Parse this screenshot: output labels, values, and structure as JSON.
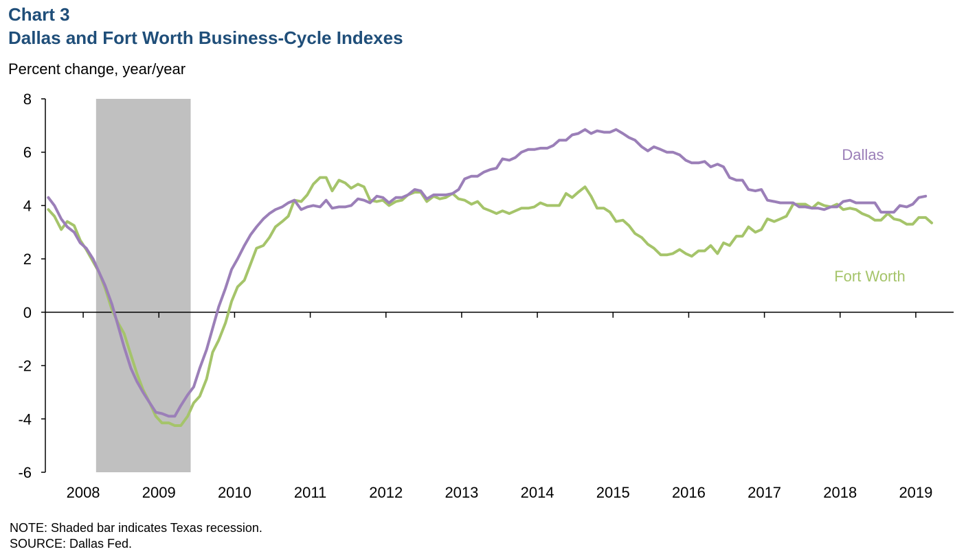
{
  "header": {
    "chart_number": "Chart 3",
    "title": "Dallas and Fort Worth Business-Cycle Indexes",
    "y_unit": "Percent change, year/year"
  },
  "footer": {
    "note": "NOTE: Shaded bar indicates Texas recession.",
    "source": "SOURCE: Dallas Fed."
  },
  "colors": {
    "dallas": "#9b7fb8",
    "fort_worth": "#a5c46a",
    "recession": "#c0c0c0"
  },
  "chart_data": {
    "type": "line",
    "title": "Dallas and Fort Worth Business-Cycle Indexes",
    "ylabel": "Percent change, year/year",
    "ylim": [
      -6,
      8
    ],
    "yticks": [
      8,
      6,
      4,
      2,
      0,
      -2,
      -4,
      -6
    ],
    "xlim": [
      2007.5,
      2019.5
    ],
    "xticks": [
      "2008",
      "2009",
      "2010",
      "2011",
      "2012",
      "2013",
      "2014",
      "2015",
      "2016",
      "2017",
      "2018",
      "2019"
    ],
    "shaded_periods": [
      {
        "label": "Texas recession",
        "start": 2008.17,
        "end": 2009.42
      }
    ],
    "legend": "inline labels",
    "series": [
      {
        "name": "Dallas",
        "label_text": "Dallas",
        "points": [
          [
            2007.54,
            4.3
          ],
          [
            2007.62,
            4.0
          ],
          [
            2007.71,
            3.5
          ],
          [
            2007.79,
            3.2
          ],
          [
            2007.88,
            3.0
          ],
          [
            2007.96,
            2.6
          ],
          [
            2008.04,
            2.4
          ],
          [
            2008.13,
            2.0
          ],
          [
            2008.21,
            1.5
          ],
          [
            2008.29,
            1.0
          ],
          [
            2008.38,
            0.3
          ],
          [
            2008.46,
            -0.5
          ],
          [
            2008.54,
            -1.3
          ],
          [
            2008.63,
            -2.1
          ],
          [
            2008.71,
            -2.6
          ],
          [
            2008.79,
            -3.0
          ],
          [
            2008.88,
            -3.4
          ],
          [
            2008.96,
            -3.75
          ],
          [
            2009.04,
            -3.8
          ],
          [
            2009.13,
            -3.9
          ],
          [
            2009.21,
            -3.9
          ],
          [
            2009.29,
            -3.5
          ],
          [
            2009.38,
            -3.1
          ],
          [
            2009.46,
            -2.8
          ],
          [
            2009.54,
            -2.1
          ],
          [
            2009.63,
            -1.4
          ],
          [
            2009.71,
            -0.6
          ],
          [
            2009.79,
            0.2
          ],
          [
            2009.88,
            0.9
          ],
          [
            2009.96,
            1.6
          ],
          [
            2010.04,
            2.0
          ],
          [
            2010.13,
            2.5
          ],
          [
            2010.21,
            2.9
          ],
          [
            2010.29,
            3.2
          ],
          [
            2010.38,
            3.5
          ],
          [
            2010.46,
            3.7
          ],
          [
            2010.54,
            3.85
          ],
          [
            2010.63,
            3.95
          ],
          [
            2010.71,
            4.1
          ],
          [
            2010.79,
            4.2
          ],
          [
            2010.88,
            3.85
          ],
          [
            2010.96,
            3.95
          ],
          [
            2011.04,
            4.0
          ],
          [
            2011.13,
            3.95
          ],
          [
            2011.21,
            4.2
          ],
          [
            2011.29,
            3.9
          ],
          [
            2011.38,
            3.95
          ],
          [
            2011.46,
            3.95
          ],
          [
            2011.54,
            4.0
          ],
          [
            2011.63,
            4.25
          ],
          [
            2011.71,
            4.2
          ],
          [
            2011.79,
            4.1
          ],
          [
            2011.88,
            4.35
          ],
          [
            2011.96,
            4.3
          ],
          [
            2012.04,
            4.1
          ],
          [
            2012.13,
            4.3
          ],
          [
            2012.21,
            4.3
          ],
          [
            2012.29,
            4.4
          ],
          [
            2012.38,
            4.6
          ],
          [
            2012.46,
            4.55
          ],
          [
            2012.54,
            4.25
          ],
          [
            2012.63,
            4.4
          ],
          [
            2012.71,
            4.4
          ],
          [
            2012.79,
            4.4
          ],
          [
            2012.88,
            4.45
          ],
          [
            2012.96,
            4.6
          ],
          [
            2013.04,
            5.0
          ],
          [
            2013.13,
            5.1
          ],
          [
            2013.21,
            5.1
          ],
          [
            2013.29,
            5.25
          ],
          [
            2013.38,
            5.35
          ],
          [
            2013.46,
            5.4
          ],
          [
            2013.54,
            5.75
          ],
          [
            2013.63,
            5.7
          ],
          [
            2013.71,
            5.8
          ],
          [
            2013.79,
            6.0
          ],
          [
            2013.88,
            6.1
          ],
          [
            2013.96,
            6.1
          ],
          [
            2014.04,
            6.15
          ],
          [
            2014.13,
            6.15
          ],
          [
            2014.21,
            6.25
          ],
          [
            2014.29,
            6.45
          ],
          [
            2014.38,
            6.45
          ],
          [
            2014.46,
            6.65
          ],
          [
            2014.54,
            6.7
          ],
          [
            2014.63,
            6.85
          ],
          [
            2014.71,
            6.7
          ],
          [
            2014.79,
            6.8
          ],
          [
            2014.88,
            6.75
          ],
          [
            2014.96,
            6.75
          ],
          [
            2015.04,
            6.85
          ],
          [
            2015.13,
            6.7
          ],
          [
            2015.21,
            6.55
          ],
          [
            2015.29,
            6.45
          ],
          [
            2015.38,
            6.2
          ],
          [
            2015.46,
            6.05
          ],
          [
            2015.54,
            6.2
          ],
          [
            2015.63,
            6.1
          ],
          [
            2015.71,
            6.0
          ],
          [
            2015.79,
            6.0
          ],
          [
            2015.88,
            5.9
          ],
          [
            2015.96,
            5.7
          ],
          [
            2016.04,
            5.6
          ],
          [
            2016.13,
            5.6
          ],
          [
            2016.21,
            5.65
          ],
          [
            2016.29,
            5.45
          ],
          [
            2016.38,
            5.55
          ],
          [
            2016.46,
            5.45
          ],
          [
            2016.54,
            5.05
          ],
          [
            2016.63,
            4.95
          ],
          [
            2016.71,
            4.95
          ],
          [
            2016.79,
            4.6
          ],
          [
            2016.88,
            4.55
          ],
          [
            2016.96,
            4.6
          ],
          [
            2017.04,
            4.2
          ],
          [
            2017.13,
            4.15
          ],
          [
            2017.21,
            4.1
          ],
          [
            2017.29,
            4.1
          ],
          [
            2017.38,
            4.1
          ],
          [
            2017.46,
            3.95
          ],
          [
            2017.54,
            3.95
          ],
          [
            2017.63,
            3.9
          ],
          [
            2017.71,
            3.9
          ],
          [
            2017.79,
            3.85
          ],
          [
            2017.88,
            3.95
          ],
          [
            2017.96,
            3.95
          ],
          [
            2018.04,
            4.15
          ],
          [
            2018.13,
            4.2
          ],
          [
            2018.21,
            4.1
          ],
          [
            2018.29,
            4.1
          ],
          [
            2018.38,
            4.1
          ],
          [
            2018.46,
            4.1
          ],
          [
            2018.54,
            3.75
          ],
          [
            2018.63,
            3.75
          ],
          [
            2018.71,
            3.75
          ],
          [
            2018.79,
            4.0
          ],
          [
            2018.88,
            3.95
          ],
          [
            2018.96,
            4.05
          ],
          [
            2019.04,
            4.3
          ],
          [
            2019.13,
            4.35
          ]
        ]
      },
      {
        "name": "Fort Worth",
        "label_text": "Fort Worth",
        "points": [
          [
            2007.54,
            3.85
          ],
          [
            2007.62,
            3.6
          ],
          [
            2007.71,
            3.1
          ],
          [
            2007.79,
            3.4
          ],
          [
            2007.88,
            3.25
          ],
          [
            2007.96,
            2.7
          ],
          [
            2008.04,
            2.35
          ],
          [
            2008.13,
            1.9
          ],
          [
            2008.21,
            1.5
          ],
          [
            2008.29,
            0.9
          ],
          [
            2008.38,
            0.1
          ],
          [
            2008.46,
            -0.4
          ],
          [
            2008.54,
            -0.8
          ],
          [
            2008.63,
            -1.6
          ],
          [
            2008.71,
            -2.3
          ],
          [
            2008.79,
            -2.9
          ],
          [
            2008.88,
            -3.4
          ],
          [
            2008.96,
            -3.9
          ],
          [
            2009.04,
            -4.15
          ],
          [
            2009.13,
            -4.15
          ],
          [
            2009.21,
            -4.25
          ],
          [
            2009.29,
            -4.25
          ],
          [
            2009.38,
            -3.9
          ],
          [
            2009.46,
            -3.4
          ],
          [
            2009.54,
            -3.15
          ],
          [
            2009.63,
            -2.5
          ],
          [
            2009.71,
            -1.5
          ],
          [
            2009.79,
            -1.05
          ],
          [
            2009.88,
            -0.4
          ],
          [
            2009.96,
            0.4
          ],
          [
            2010.04,
            0.95
          ],
          [
            2010.13,
            1.2
          ],
          [
            2010.21,
            1.8
          ],
          [
            2010.29,
            2.4
          ],
          [
            2010.38,
            2.5
          ],
          [
            2010.46,
            2.8
          ],
          [
            2010.54,
            3.2
          ],
          [
            2010.63,
            3.4
          ],
          [
            2010.71,
            3.6
          ],
          [
            2010.79,
            4.2
          ],
          [
            2010.88,
            4.15
          ],
          [
            2010.96,
            4.4
          ],
          [
            2011.04,
            4.8
          ],
          [
            2011.13,
            5.05
          ],
          [
            2011.21,
            5.05
          ],
          [
            2011.29,
            4.55
          ],
          [
            2011.38,
            4.95
          ],
          [
            2011.46,
            4.85
          ],
          [
            2011.54,
            4.65
          ],
          [
            2011.63,
            4.8
          ],
          [
            2011.71,
            4.7
          ],
          [
            2011.79,
            4.2
          ],
          [
            2011.88,
            4.15
          ],
          [
            2011.96,
            4.2
          ],
          [
            2012.04,
            4.0
          ],
          [
            2012.13,
            4.15
          ],
          [
            2012.21,
            4.2
          ],
          [
            2012.29,
            4.4
          ],
          [
            2012.38,
            4.5
          ],
          [
            2012.46,
            4.5
          ],
          [
            2012.54,
            4.15
          ],
          [
            2012.63,
            4.35
          ],
          [
            2012.71,
            4.25
          ],
          [
            2012.79,
            4.3
          ],
          [
            2012.88,
            4.45
          ],
          [
            2012.96,
            4.25
          ],
          [
            2013.04,
            4.2
          ],
          [
            2013.13,
            4.05
          ],
          [
            2013.21,
            4.15
          ],
          [
            2013.29,
            3.9
          ],
          [
            2013.38,
            3.8
          ],
          [
            2013.46,
            3.7
          ],
          [
            2013.54,
            3.8
          ],
          [
            2013.63,
            3.7
          ],
          [
            2013.71,
            3.8
          ],
          [
            2013.79,
            3.9
          ],
          [
            2013.88,
            3.9
          ],
          [
            2013.96,
            3.95
          ],
          [
            2014.04,
            4.1
          ],
          [
            2014.13,
            4.0
          ],
          [
            2014.21,
            4.0
          ],
          [
            2014.29,
            4.0
          ],
          [
            2014.38,
            4.45
          ],
          [
            2014.46,
            4.3
          ],
          [
            2014.54,
            4.5
          ],
          [
            2014.63,
            4.7
          ],
          [
            2014.71,
            4.35
          ],
          [
            2014.79,
            3.9
          ],
          [
            2014.88,
            3.9
          ],
          [
            2014.96,
            3.75
          ],
          [
            2015.04,
            3.4
          ],
          [
            2015.13,
            3.45
          ],
          [
            2015.21,
            3.25
          ],
          [
            2015.29,
            2.95
          ],
          [
            2015.38,
            2.8
          ],
          [
            2015.46,
            2.55
          ],
          [
            2015.54,
            2.4
          ],
          [
            2015.63,
            2.15
          ],
          [
            2015.71,
            2.15
          ],
          [
            2015.79,
            2.2
          ],
          [
            2015.88,
            2.35
          ],
          [
            2015.96,
            2.2
          ],
          [
            2016.04,
            2.1
          ],
          [
            2016.13,
            2.3
          ],
          [
            2016.21,
            2.3
          ],
          [
            2016.29,
            2.5
          ],
          [
            2016.38,
            2.2
          ],
          [
            2016.46,
            2.6
          ],
          [
            2016.54,
            2.5
          ],
          [
            2016.63,
            2.85
          ],
          [
            2016.71,
            2.85
          ],
          [
            2016.79,
            3.2
          ],
          [
            2016.88,
            3.0
          ],
          [
            2016.96,
            3.1
          ],
          [
            2017.04,
            3.5
          ],
          [
            2017.13,
            3.4
          ],
          [
            2017.21,
            3.5
          ],
          [
            2017.29,
            3.6
          ],
          [
            2017.38,
            4.05
          ],
          [
            2017.46,
            4.05
          ],
          [
            2017.54,
            4.05
          ],
          [
            2017.63,
            3.9
          ],
          [
            2017.71,
            4.1
          ],
          [
            2017.79,
            4.0
          ],
          [
            2017.88,
            3.95
          ],
          [
            2017.96,
            4.05
          ],
          [
            2018.04,
            3.85
          ],
          [
            2018.13,
            3.9
          ],
          [
            2018.21,
            3.85
          ],
          [
            2018.29,
            3.7
          ],
          [
            2018.38,
            3.6
          ],
          [
            2018.46,
            3.45
          ],
          [
            2018.54,
            3.45
          ],
          [
            2018.63,
            3.7
          ],
          [
            2018.71,
            3.5
          ],
          [
            2018.79,
            3.45
          ],
          [
            2018.88,
            3.3
          ],
          [
            2018.96,
            3.3
          ],
          [
            2019.04,
            3.55
          ],
          [
            2019.13,
            3.55
          ],
          [
            2019.21,
            3.35
          ]
        ]
      }
    ]
  }
}
